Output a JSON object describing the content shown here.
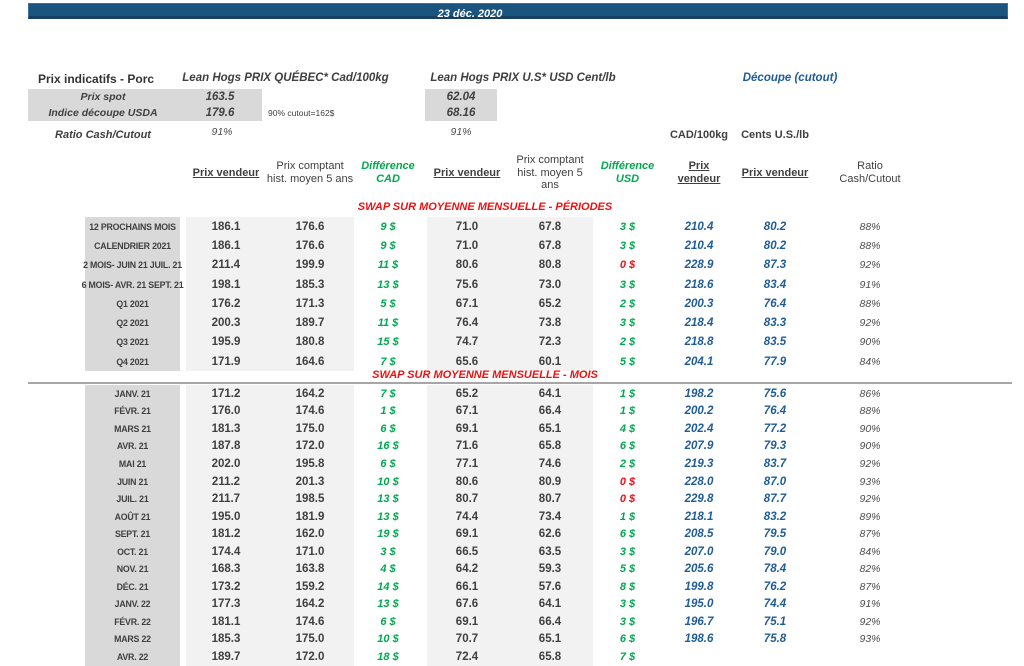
{
  "banner": {
    "date": "23 déc. 2020"
  },
  "summary": {
    "title": "Prix indicatifs - Porc",
    "quebec_header": "Lean Hogs PRIX QUÉBEC* Cad/100kg",
    "us_header": "Lean Hogs PRIX U.S* USD Cent/lb",
    "cutout_header": "Découpe (cutout)",
    "note": "90% cutout=162$",
    "rows": [
      {
        "label": "Prix spot",
        "cad": "163.5",
        "usd": "62.04"
      },
      {
        "label": "Indice découpe USDA",
        "cad": "179.6",
        "usd": "68.16"
      },
      {
        "label": "Ratio Cash/Cutout",
        "cad": "91%",
        "usd": "91%"
      }
    ]
  },
  "table": {
    "unit_labels": {
      "cut_cad": "CAD/100kg",
      "cut_usd": "Cents U.S./lb"
    },
    "headers": {
      "pv_cad": "Prix vendeur",
      "pc_cad": "Prix comptant hist. moyen 5 ans",
      "diff_cad": "Différence CAD",
      "pv_usd": "Prix vendeur",
      "pc_usd": "Prix comptant hist. moyen 5 ans",
      "diff_usd": "Différence USD",
      "pv_cut_cad": "Prix vendeur",
      "pv_cut_usd": "Prix vendeur",
      "ratio": "Ratio\nCash/Cutout"
    },
    "colors": {
      "banner_blue": "#1c5480",
      "green": "#00a94f",
      "red": "#f60d17",
      "cutout_blue": "#1e5c99",
      "label_gray": "#d9d9d9",
      "shade_gray": "#f2f2f2"
    },
    "sections": [
      {
        "title": "SWAP SUR MOYENNE MENSUELLE - PÉRIODES",
        "rows": [
          {
            "label": "12 PROCHAINS MOIS",
            "cells": [
              "186.1",
              "176.6",
              "9 $",
              "71.0",
              "67.8",
              "3 $",
              "210.4",
              "80.2",
              "88%"
            ]
          },
          {
            "label": "CALENDRIER 2021",
            "cells": [
              "186.1",
              "176.6",
              "9 $",
              "71.0",
              "67.8",
              "3 $",
              "210.4",
              "80.2",
              "88%"
            ]
          },
          {
            "label": "2 MOIS- JUIN 21 JUIL. 21",
            "cells": [
              "211.4",
              "199.9",
              "11 $",
              "80.6",
              "80.8",
              "0 $",
              "228.9",
              "87.3",
              "92%"
            ]
          },
          {
            "label": "6 MOIS- AVR. 21 SEPT. 21",
            "cells": [
              "198.1",
              "185.3",
              "13 $",
              "75.6",
              "73.0",
              "3 $",
              "218.6",
              "83.4",
              "91%"
            ]
          },
          {
            "label": "Q1 2021",
            "cells": [
              "176.2",
              "171.3",
              "5 $",
              "67.1",
              "65.2",
              "2 $",
              "200.3",
              "76.4",
              "88%"
            ]
          },
          {
            "label": "Q2 2021",
            "cells": [
              "200.3",
              "189.7",
              "11 $",
              "76.4",
              "73.8",
              "3 $",
              "218.4",
              "83.3",
              "92%"
            ]
          },
          {
            "label": "Q3 2021",
            "cells": [
              "195.9",
              "180.8",
              "15 $",
              "74.7",
              "72.3",
              "2 $",
              "218.8",
              "83.5",
              "90%"
            ]
          },
          {
            "label": "Q4 2021",
            "cells": [
              "171.9",
              "164.6",
              "7 $",
              "65.6",
              "60.1",
              "5 $",
              "204.1",
              "77.9",
              "84%"
            ]
          }
        ]
      },
      {
        "title": "SWAP SUR MOYENNE MENSUELLE - MOIS",
        "rows": [
          {
            "label": "JANV. 21",
            "cells": [
              "171.2",
              "164.2",
              "7 $",
              "65.2",
              "64.1",
              "1 $",
              "198.2",
              "75.6",
              "86%"
            ]
          },
          {
            "label": "FÉVR. 21",
            "cells": [
              "176.0",
              "174.6",
              "1 $",
              "67.1",
              "66.4",
              "1 $",
              "200.2",
              "76.4",
              "88%"
            ]
          },
          {
            "label": "MARS 21",
            "cells": [
              "181.3",
              "175.0",
              "6 $",
              "69.1",
              "65.1",
              "4 $",
              "202.4",
              "77.2",
              "90%"
            ]
          },
          {
            "label": "AVR. 21",
            "cells": [
              "187.8",
              "172.0",
              "16 $",
              "71.6",
              "65.8",
              "6 $",
              "207.9",
              "79.3",
              "90%"
            ]
          },
          {
            "label": "MAI 21",
            "cells": [
              "202.0",
              "195.8",
              "6 $",
              "77.1",
              "74.6",
              "2 $",
              "219.3",
              "83.7",
              "92%"
            ]
          },
          {
            "label": "JUIN 21",
            "cells": [
              "211.2",
              "201.3",
              "10 $",
              "80.6",
              "80.9",
              "0 $",
              "228.0",
              "87.0",
              "93%"
            ]
          },
          {
            "label": "JUIL. 21",
            "cells": [
              "211.7",
              "198.5",
              "13 $",
              "80.7",
              "80.7",
              "0 $",
              "229.8",
              "87.7",
              "92%"
            ]
          },
          {
            "label": "AOÛT 21",
            "cells": [
              "195.0",
              "181.9",
              "13 $",
              "74.4",
              "73.4",
              "1 $",
              "218.1",
              "83.2",
              "89%"
            ]
          },
          {
            "label": "SEPT. 21",
            "cells": [
              "181.2",
              "162.0",
              "19 $",
              "69.1",
              "62.6",
              "6 $",
              "208.5",
              "79.5",
              "87%"
            ]
          },
          {
            "label": "OCT. 21",
            "cells": [
              "174.4",
              "171.0",
              "3 $",
              "66.5",
              "63.5",
              "3 $",
              "207.0",
              "79.0",
              "84%"
            ]
          },
          {
            "label": "NOV. 21",
            "cells": [
              "168.3",
              "163.8",
              "4 $",
              "64.2",
              "59.3",
              "5 $",
              "205.6",
              "78.4",
              "82%"
            ]
          },
          {
            "label": "DÉC. 21",
            "cells": [
              "173.2",
              "159.2",
              "14 $",
              "66.1",
              "57.6",
              "8 $",
              "199.8",
              "76.2",
              "87%"
            ]
          },
          {
            "label": "JANV. 22",
            "cells": [
              "177.3",
              "164.2",
              "13 $",
              "67.6",
              "64.1",
              "3 $",
              "195.0",
              "74.4",
              "91%"
            ]
          },
          {
            "label": "FÉVR. 22",
            "cells": [
              "181.1",
              "174.6",
              "6 $",
              "69.1",
              "66.4",
              "3 $",
              "196.7",
              "75.1",
              "92%"
            ]
          },
          {
            "label": "MARS 22",
            "cells": [
              "185.3",
              "175.0",
              "10 $",
              "70.7",
              "65.1",
              "6 $",
              "198.6",
              "75.8",
              "93%"
            ]
          },
          {
            "label": "AVR. 22",
            "cells": [
              "189.7",
              "172.0",
              "18 $",
              "72.4",
              "65.8",
              "7 $",
              "",
              "",
              ""
            ]
          }
        ]
      }
    ]
  }
}
